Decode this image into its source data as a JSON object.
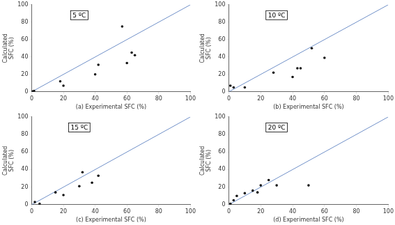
{
  "chart_data": [
    {
      "type": "scatter",
      "xlabel": "(a) Experimental SFC (%)",
      "ylabel": "Calculated\nSFC (%)",
      "annotation": "5 ºC",
      "xlim": [
        0,
        100
      ],
      "ylim": [
        0,
        100
      ],
      "xticks": [
        0,
        20,
        40,
        60,
        80,
        100
      ],
      "yticks": [
        0,
        20,
        40,
        60,
        80,
        100
      ],
      "grid": false,
      "series": [
        {
          "type": "line",
          "color": "#7090c8",
          "x": [
            0,
            100
          ],
          "values": [
            0,
            100
          ]
        },
        {
          "type": "scatter",
          "color": "#111111",
          "x": [
            0.5,
            1.5,
            18,
            20,
            40,
            42,
            57,
            60,
            63,
            65
          ],
          "values": [
            0.5,
            1.0,
            12,
            7,
            20,
            31,
            75,
            33,
            45,
            42
          ]
        }
      ]
    },
    {
      "type": "scatter",
      "xlabel": "(b) Experimental SFC (%)",
      "ylabel": "Calculated\nSFC (%)",
      "annotation": "10 ºC",
      "xlim": [
        0,
        100
      ],
      "ylim": [
        0,
        100
      ],
      "xticks": [
        0,
        20,
        40,
        60,
        80,
        100
      ],
      "yticks": [
        0,
        20,
        40,
        60,
        80,
        100
      ],
      "grid": false,
      "series": [
        {
          "type": "line",
          "color": "#7090c8",
          "x": [
            0,
            100
          ],
          "values": [
            0,
            100
          ]
        },
        {
          "type": "scatter",
          "color": "#111111",
          "x": [
            1,
            3,
            10,
            28,
            40,
            43,
            45,
            52,
            60
          ],
          "values": [
            7,
            5,
            5,
            22,
            17,
            27,
            27,
            50,
            39
          ]
        }
      ]
    },
    {
      "type": "scatter",
      "xlabel": "(c) Experimental SFC (%)",
      "ylabel": "Calculated\nSFC (%)",
      "annotation": "15 ºC",
      "xlim": [
        0,
        100
      ],
      "ylim": [
        0,
        100
      ],
      "xticks": [
        0,
        20,
        40,
        60,
        80,
        100
      ],
      "yticks": [
        0,
        20,
        40,
        60,
        80,
        100
      ],
      "grid": false,
      "series": [
        {
          "type": "line",
          "color": "#7090c8",
          "x": [
            0,
            100
          ],
          "values": [
            0,
            100
          ]
        },
        {
          "type": "scatter",
          "color": "#111111",
          "x": [
            2,
            5,
            15,
            20,
            30,
            32,
            38,
            42
          ],
          "values": [
            3,
            1,
            14,
            11,
            21,
            37,
            25,
            33
          ]
        }
      ]
    },
    {
      "type": "scatter",
      "xlabel": "(d) Experimental SFC (%)",
      "ylabel": "Calculated\nSFC (%)",
      "annotation": "20 ºC",
      "xlim": [
        0,
        100
      ],
      "ylim": [
        0,
        100
      ],
      "xticks": [
        0,
        20,
        40,
        60,
        80,
        100
      ],
      "yticks": [
        0,
        20,
        40,
        60,
        80,
        100
      ],
      "grid": false,
      "series": [
        {
          "type": "line",
          "color": "#7090c8",
          "x": [
            0,
            100
          ],
          "values": [
            0,
            100
          ]
        },
        {
          "type": "scatter",
          "color": "#111111",
          "x": [
            1,
            3,
            5,
            10,
            15,
            18,
            20,
            25,
            30,
            50
          ],
          "values": [
            1,
            5,
            10,
            13,
            16,
            14,
            22,
            28,
            22,
            22
          ]
        }
      ]
    }
  ]
}
